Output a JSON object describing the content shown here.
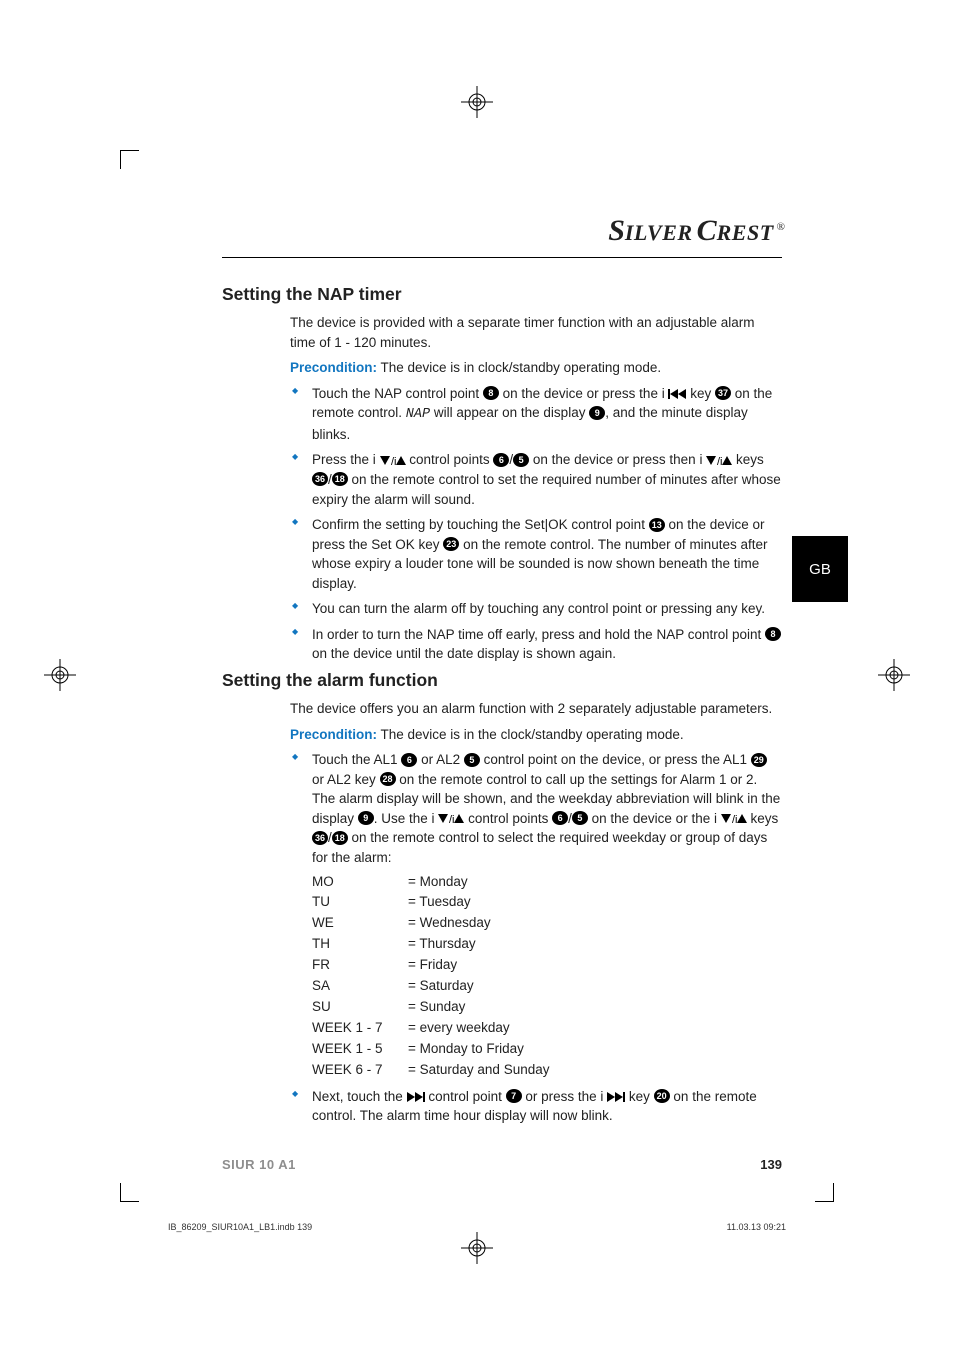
{
  "brand": {
    "name_main": "SILVER CREST",
    "name_silver": "S",
    "name_ilver": "ILVER",
    "name_crest": "CREST",
    "trademark": "®"
  },
  "colors": {
    "accent": "#1276c0",
    "text": "#222222",
    "muted": "#8e8e8e"
  },
  "side_tab": "GB",
  "sec1": {
    "title": "Setting the NAP timer",
    "intro": "The device is provided with a separate timer function with an adjustable alarm time of 1 - 120 minutes.",
    "pre_label": "Precondition:",
    "pre_text": " The device is in clock/standby operating mode.",
    "items": [
      {
        "t1": "Touch the NAP control point ",
        "c1": "8",
        "t2": " on the device or press the i ",
        "key1": "rew",
        "t3": " key ",
        "c2": "37",
        "t4": " on the remote control. ",
        "ital": "NAP",
        "t5": " will appear on the display ",
        "c3": "9",
        "t6": ", and the minute display blinks."
      },
      {
        "t1": "Press the i ",
        "tri": "dnup",
        "t2": " control points ",
        "c1": "6",
        "t3": "/",
        "c2": "5",
        "t4": " on the device or press then i ",
        "tri2": "dnup",
        "t5": " keys ",
        "c3": "36",
        "t6": "/",
        "c4": "18",
        "t7": " on the remote control to set the required number of minutes after whose expiry the alarm will sound."
      },
      {
        "t1": "Confirm the setting by touching the Set|OK control point ",
        "c1": "13",
        "t2": " on the device or press the Set OK key ",
        "c2": "23",
        "t3": " on the remote control. The number of minutes after whose expiry a louder tone will be sounded is now shown beneath the time display."
      },
      {
        "t1": "You can turn the alarm off by touching any control point or pressing any key."
      },
      {
        "t1": "In order to turn the NAP time off early, press and hold the NAP control point ",
        "c1": "8",
        "t2": " on the device until the date display is shown again."
      }
    ]
  },
  "sec2": {
    "title": "Setting the alarm function",
    "intro": "The device offers you an alarm function with 2 separately adjustable parameters.",
    "pre_label": "Precondition:",
    "pre_text": " The device is in the clock/standby operating mode.",
    "item1": {
      "t1": "Touch the AL1 ",
      "c1": "6",
      "t2": " or AL2 ",
      "c2": "5",
      "t3": " control point on the device, or press the AL1 ",
      "c3": "29",
      "t4": " or AL2 key ",
      "c4": "28",
      "t5": " on the remote control to call up the settings for Alarm 1 or 2. The alarm display will be shown, and the weekday abbreviation will blink in the display ",
      "c5": "9",
      "t6": ". Use the i ",
      "tri": "dnup",
      "t7": " control points ",
      "c6": "6",
      "t8": "/",
      "c7": "5",
      "t9": " on the device or the i ",
      "tri2": "dnup",
      "t10": " keys ",
      "c8": "36",
      "t11": "/",
      "c9": "18",
      "t12": " on the remote control to select the required weekday or group of days for the alarm:"
    },
    "days": [
      [
        "MO",
        "= Monday"
      ],
      [
        "TU",
        "= Tuesday"
      ],
      [
        "WE",
        "= Wednesday"
      ],
      [
        "TH",
        "= Thursday"
      ],
      [
        "FR",
        "= Friday"
      ],
      [
        "SA",
        "= Saturday"
      ],
      [
        "SU",
        "= Sunday"
      ],
      [
        "WEEK 1 - 7",
        "= every weekday"
      ],
      [
        "WEEK 1 - 5",
        "= Monday to Friday"
      ],
      [
        "WEEK 6 - 7",
        "= Saturday and Sunday"
      ]
    ],
    "item2": {
      "t1": "Next, touch the ",
      "key1": "fwd",
      "t2": " control point ",
      "c1": "7",
      "t3": " or press the i ",
      "key2": "fwd",
      "t4": " key ",
      "c2": "20",
      "t5": " on the remote control. The alarm time hour display will now blink."
    }
  },
  "footer": {
    "model": "SIUR 10 A1",
    "page": "139"
  },
  "subfoot": {
    "left": "IB_86209_SIUR10A1_LB1.indb   139",
    "right": "11.03.13   09:21"
  }
}
